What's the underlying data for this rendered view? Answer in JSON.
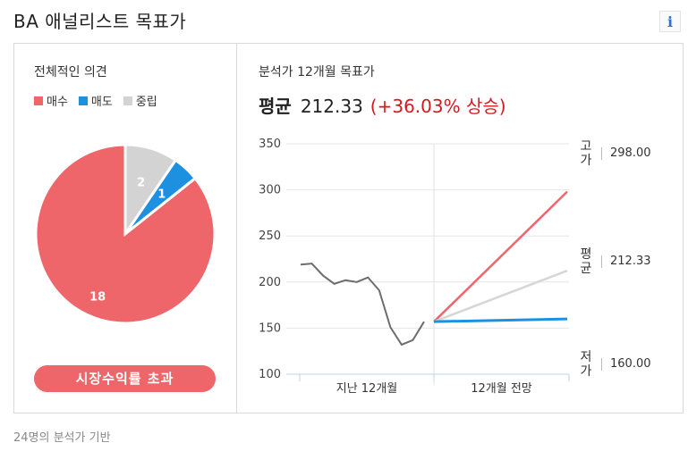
{
  "header": {
    "title": "BA 애널리스트 목표가",
    "info_icon": "i"
  },
  "consensus": {
    "title": "전체적인 의견",
    "legend": [
      {
        "label": "매수",
        "color": "#ef666a"
      },
      {
        "label": "매도",
        "color": "#1e90e0"
      },
      {
        "label": "중립",
        "color": "#d3d3d3"
      }
    ],
    "pie": [
      {
        "label": "매수",
        "count": 18,
        "color": "#ef666a"
      },
      {
        "label": "매도",
        "count": 1,
        "color": "#1e90e0"
      },
      {
        "label": "중립",
        "count": 2,
        "color": "#d3d3d3"
      }
    ],
    "button": "시장수익률 초과"
  },
  "target": {
    "title": "분석가 12개월 목표가",
    "avg_label": "평균",
    "avg_value": "212.33",
    "avg_change": "(+36.03% 상승)",
    "high_label": "고가",
    "high_value": "298.00",
    "mid_label": "평균",
    "mid_value": "212.33",
    "low_label": "저가",
    "low_value": "160.00"
  },
  "chart_data": {
    "type": "line",
    "y_ticks": [
      "350",
      "300",
      "250",
      "200",
      "150",
      "100"
    ],
    "ylim": [
      100,
      350
    ],
    "x_labels": [
      "지난 12개월",
      "12개월 전망"
    ],
    "history": [
      219,
      220,
      207,
      198,
      202,
      200,
      205,
      191,
      151,
      132,
      137,
      157
    ],
    "current": 157,
    "projections": [
      {
        "name": "고가",
        "value": 298.0,
        "color": "#ef666a"
      },
      {
        "name": "평균",
        "value": 212.33,
        "color": "#d6d6d6"
      },
      {
        "name": "저가",
        "value": 160.0,
        "color": "#1e90e0"
      }
    ],
    "history_color": "#6d6d6d",
    "grid": true
  },
  "footer": {
    "note": "24명의 분석가 기반"
  }
}
